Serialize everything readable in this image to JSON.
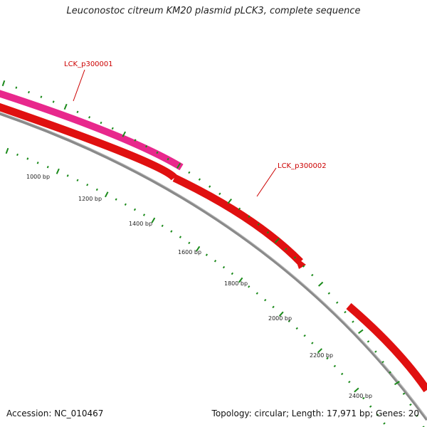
{
  "title": "Leuconostoc citreum KM20 plasmid pLCK3, complete sequence",
  "footer": {
    "accession": "Accession: NC_010467",
    "summary": "Topology: circular; Length: 17,971 bp; Genes: 20"
  },
  "genes": [
    {
      "name": "LCK_p300001",
      "color": "#e8288c",
      "strand": "outer"
    },
    {
      "name": "LCK_p300002",
      "color": "#e01010",
      "strand": "inner"
    }
  ],
  "ticks": [
    {
      "label": "1000 bp"
    },
    {
      "label": "1200 bp"
    },
    {
      "label": "1400 bp"
    },
    {
      "label": "1600 bp"
    },
    {
      "label": "1800 bp"
    },
    {
      "label": "2000 bp"
    },
    {
      "label": "2200 bp"
    },
    {
      "label": "2400 bp"
    }
  ],
  "colors": {
    "backbone": "#8a8a8a",
    "tick": "#1a8a1a",
    "label": "#cc0000"
  }
}
